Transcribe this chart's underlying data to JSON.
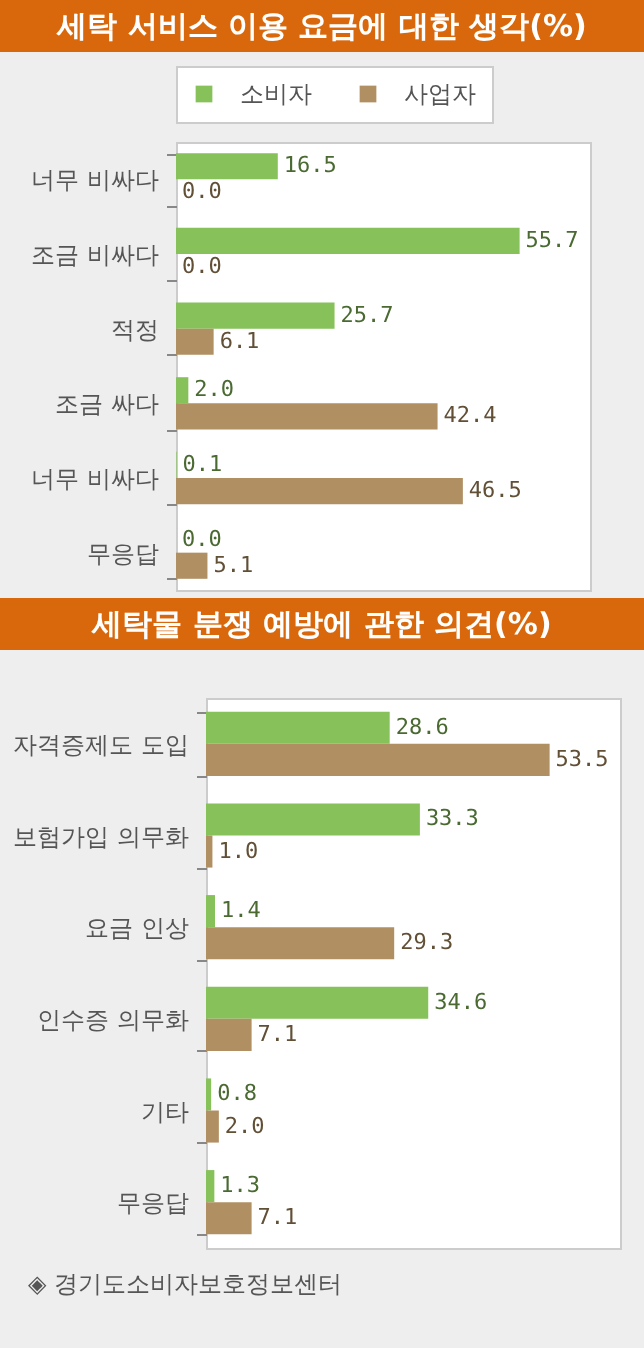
{
  "chart_data": [
    {
      "type": "bar",
      "orientation": "horizontal",
      "title": "세탁 서비스 이용 요금에 대한 생각(%)",
      "legend": "top left",
      "categories": [
        "너무 비싸다",
        "조금 비싸다",
        "적정",
        "조금 싸다",
        "너무 비싸다",
        "무응답"
      ],
      "series": [
        {
          "name": "소비자",
          "color": "#86c15a",
          "values": [
            16.5,
            55.7,
            25.7,
            2.0,
            0.1,
            0.0
          ],
          "value_labels": [
            "16.5",
            "55.7",
            "25.7",
            "2.0",
            "0.1",
            "0.0"
          ]
        },
        {
          "name": "사업자",
          "color": "#b08f62",
          "values": [
            0.0,
            0.0,
            6.1,
            42.4,
            46.5,
            5.1
          ],
          "value_labels": [
            "0.0",
            "0.0",
            "6.1",
            "42.4",
            "46.5",
            "5.1"
          ]
        }
      ]
    },
    {
      "type": "bar",
      "orientation": "horizontal",
      "title": "세탁물 분쟁 예방에 관한 의견(%)",
      "categories": [
        "자격증제도 도입",
        "보험가입 의무화",
        "요금 인상",
        "인수증 의무화",
        "기타",
        "무응답"
      ],
      "series": [
        {
          "color": "#86c15a",
          "values": [
            28.6,
            33.3,
            1.4,
            34.6,
            0.8,
            1.3
          ],
          "value_labels": [
            "28.6",
            "33.3",
            "1.4",
            "34.6",
            "0.8",
            "1.3"
          ]
        },
        {
          "color": "#b08f62",
          "values": [
            53.5,
            1.0,
            29.3,
            7.1,
            2.0,
            7.1
          ],
          "value_labels": [
            "53.5",
            "1.0",
            "29.3",
            "7.1",
            "2.0",
            "7.1"
          ]
        }
      ],
      "annotations": [
        "◈ 경기도소비자보호정보센터"
      ]
    }
  ]
}
